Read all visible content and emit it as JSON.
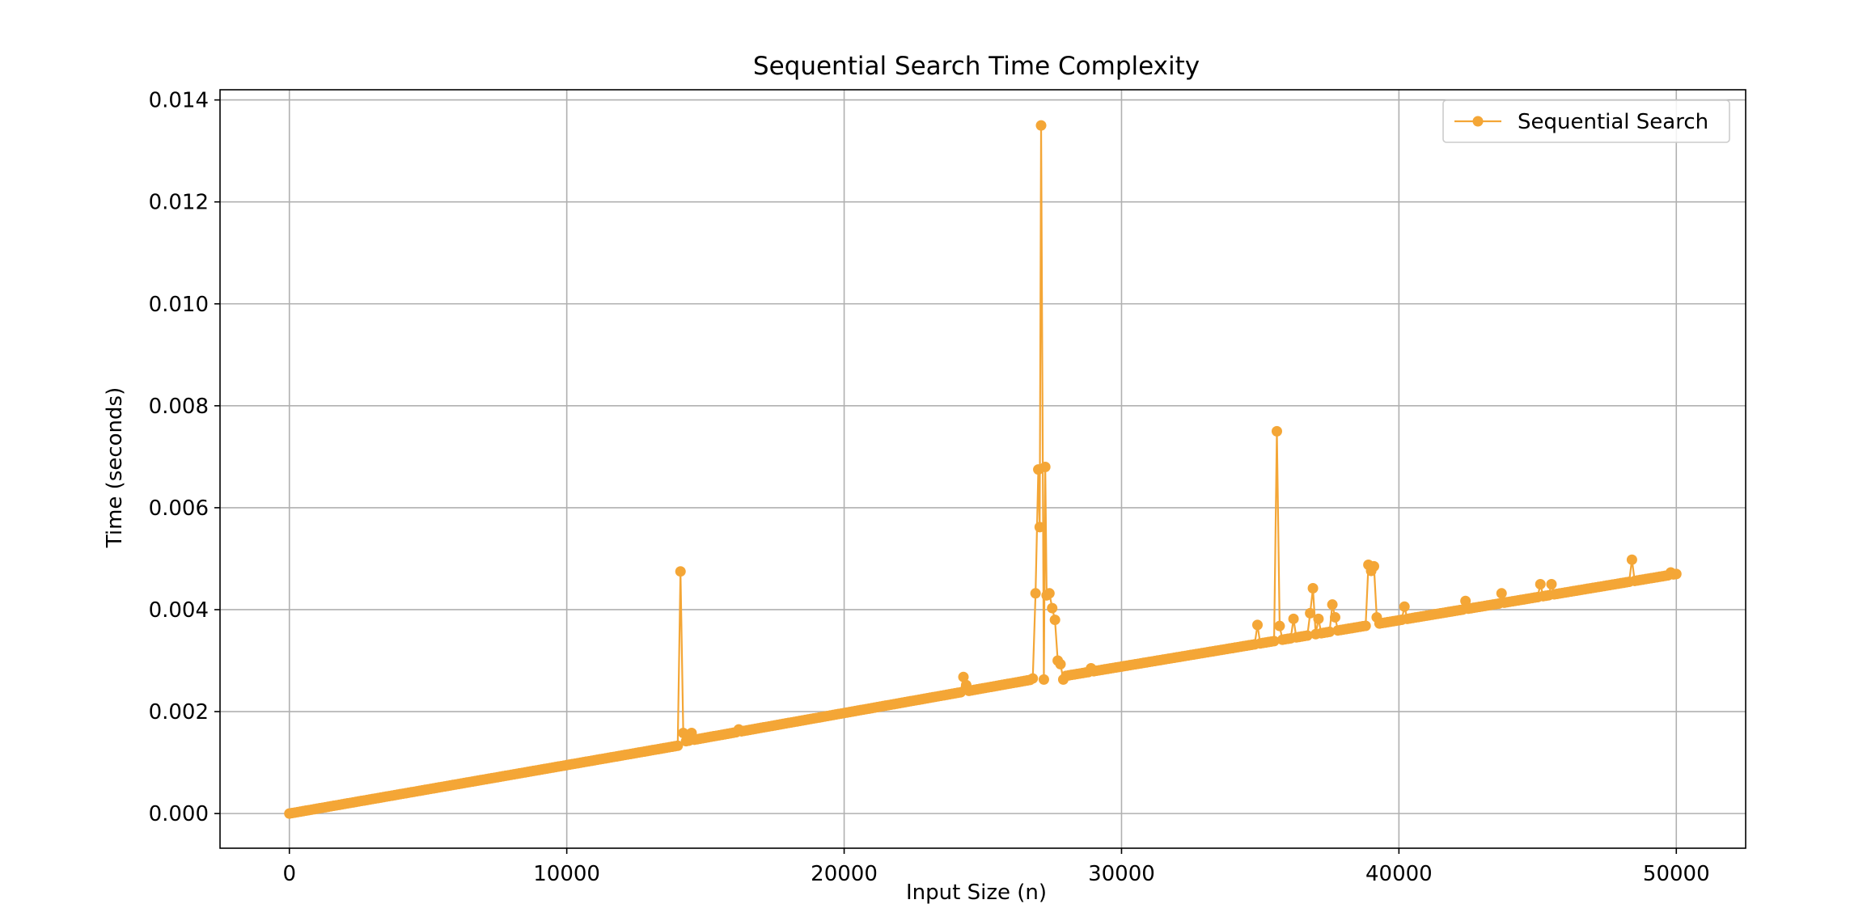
{
  "chart_data": {
    "type": "line",
    "title": "Sequential Search Time Complexity",
    "xlabel": "Input Size (n)",
    "ylabel": "Time (seconds)",
    "xlim": [
      -2500,
      52500
    ],
    "ylim": [
      -0.00068,
      0.0142
    ],
    "xticks": [
      0,
      10000,
      20000,
      30000,
      40000,
      50000
    ],
    "xtick_labels": [
      "0",
      "10000",
      "20000",
      "30000",
      "40000",
      "50000"
    ],
    "yticks": [
      0.0,
      0.002,
      0.004,
      0.006,
      0.008,
      0.01,
      0.012,
      0.014
    ],
    "ytick_labels": [
      "0.000",
      "0.002",
      "0.004",
      "0.006",
      "0.008",
      "0.010",
      "0.012",
      "0.014"
    ],
    "grid": true,
    "legend": "top-right",
    "series": [
      {
        "name": "Sequential Search",
        "color": "#f4a636",
        "marker": "circle",
        "baseline": {
          "x_start": 0,
          "x_end": 50000,
          "step": 100,
          "segments": [
            {
              "x0": 0,
              "x1": 14000,
              "y0": 0.0,
              "y1": 0.00133
            },
            {
              "x0": 14100,
              "x1": 27000,
              "y0": 0.0014,
              "y1": 0.00265
            },
            {
              "x0": 27100,
              "x1": 50000,
              "y0": 0.00262,
              "y1": 0.0047
            }
          ]
        },
        "outliers": [
          {
            "x": 14100,
            "y": 0.00475
          },
          {
            "x": 14200,
            "y": 0.00158
          },
          {
            "x": 14500,
            "y": 0.00158
          },
          {
            "x": 16200,
            "y": 0.00165
          },
          {
            "x": 24300,
            "y": 0.00268
          },
          {
            "x": 24400,
            "y": 0.00252
          },
          {
            "x": 26800,
            "y": 0.00265
          },
          {
            "x": 26900,
            "y": 0.00432
          },
          {
            "x": 27000,
            "y": 0.00675
          },
          {
            "x": 27050,
            "y": 0.00562
          },
          {
            "x": 27100,
            "y": 0.0135
          },
          {
            "x": 27250,
            "y": 0.0068
          },
          {
            "x": 27300,
            "y": 0.00428
          },
          {
            "x": 27400,
            "y": 0.00432
          },
          {
            "x": 27500,
            "y": 0.00403
          },
          {
            "x": 27600,
            "y": 0.0038
          },
          {
            "x": 27700,
            "y": 0.003
          },
          {
            "x": 27800,
            "y": 0.00293
          },
          {
            "x": 27900,
            "y": 0.00263
          },
          {
            "x": 28900,
            "y": 0.00285
          },
          {
            "x": 34900,
            "y": 0.0037
          },
          {
            "x": 35600,
            "y": 0.0075
          },
          {
            "x": 35700,
            "y": 0.00368
          },
          {
            "x": 36200,
            "y": 0.00382
          },
          {
            "x": 36800,
            "y": 0.00393
          },
          {
            "x": 36900,
            "y": 0.00442
          },
          {
            "x": 37100,
            "y": 0.00382
          },
          {
            "x": 37600,
            "y": 0.0041
          },
          {
            "x": 37700,
            "y": 0.00385
          },
          {
            "x": 38900,
            "y": 0.00488
          },
          {
            "x": 39000,
            "y": 0.00476
          },
          {
            "x": 39100,
            "y": 0.00485
          },
          {
            "x": 39200,
            "y": 0.00385
          },
          {
            "x": 40200,
            "y": 0.00406
          },
          {
            "x": 42400,
            "y": 0.00417
          },
          {
            "x": 43700,
            "y": 0.00432
          },
          {
            "x": 45100,
            "y": 0.0045
          },
          {
            "x": 45500,
            "y": 0.0045
          },
          {
            "x": 48400,
            "y": 0.00498
          },
          {
            "x": 49800,
            "y": 0.00473
          }
        ]
      }
    ]
  },
  "colors": {
    "series": "#f4a636",
    "grid": "#b0b0b0",
    "axes": "#000000"
  }
}
